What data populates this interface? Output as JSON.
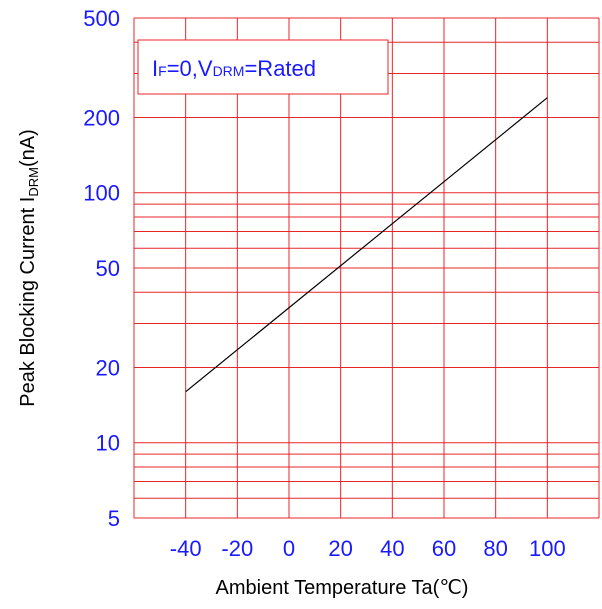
{
  "chart_data": {
    "type": "line",
    "xlabel": "Ambient Temperature Ta(℃)",
    "ylabel": {
      "main": "Peak Blocking Current I",
      "sub": "DRM",
      "unit": "(nA)"
    },
    "annotation": {
      "p1": "I",
      "s1": "F",
      "p2": "=0,V",
      "s2": "DRM",
      "p3": "=Rated"
    },
    "x_scale": "linear",
    "y_scale": "log",
    "xlim": [
      -60,
      120
    ],
    "ylim": [
      5,
      500
    ],
    "x_ticks": [
      -40,
      -20,
      0,
      20,
      40,
      60,
      80,
      100
    ],
    "y_ticks": [
      5,
      10,
      20,
      50,
      100,
      200,
      500
    ],
    "x_tick_labels": [
      "-40",
      "-20",
      "0",
      "20",
      "40",
      "60",
      "80",
      "100"
    ],
    "y_tick_labels": [
      "5",
      "10",
      "20",
      "50",
      "100",
      "200",
      "500"
    ],
    "grid": true,
    "colors": {
      "grid": "#e8262a",
      "line": "#000000",
      "tick_text": "#1a1aff",
      "annotation_box": "#e8262a"
    },
    "series": [
      {
        "x": [
          -40,
          100
        ],
        "y": [
          16,
          240
        ]
      }
    ]
  }
}
